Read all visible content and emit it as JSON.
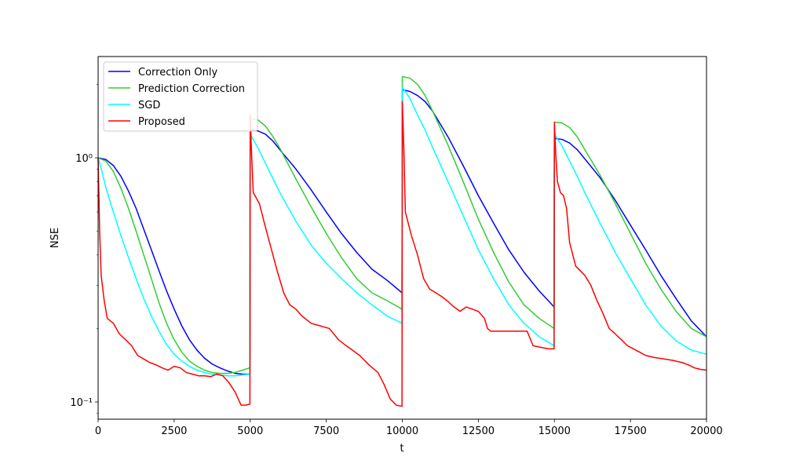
{
  "chart_data": {
    "type": "line",
    "title": "",
    "xlabel": "t",
    "ylabel": "NSE",
    "xlim": [
      0,
      20000
    ],
    "ylim": [
      0.085,
      2.6
    ],
    "yscale": "log",
    "grid": false,
    "legend_position": "top-left",
    "x_ticks": [
      0,
      2500,
      5000,
      7500,
      10000,
      12500,
      15000,
      17500,
      20000
    ],
    "x_tick_labels": [
      "0",
      "2500",
      "5000",
      "7500",
      "10000",
      "12500",
      "15000",
      "17500",
      "20000"
    ],
    "y_ticks": [
      0.1,
      1
    ],
    "y_tick_labels": [
      "10⁻¹",
      "10⁰"
    ],
    "series": [
      {
        "name": "Correction Only",
        "color": "#0000ff",
        "points": [
          [
            0,
            1.0
          ],
          [
            250,
            0.985
          ],
          [
            500,
            0.93
          ],
          [
            750,
            0.84
          ],
          [
            1000,
            0.73
          ],
          [
            1250,
            0.62
          ],
          [
            1500,
            0.51
          ],
          [
            1750,
            0.42
          ],
          [
            2000,
            0.345
          ],
          [
            2250,
            0.285
          ],
          [
            2500,
            0.24
          ],
          [
            2750,
            0.205
          ],
          [
            3000,
            0.18
          ],
          [
            3250,
            0.163
          ],
          [
            3500,
            0.151
          ],
          [
            3750,
            0.143
          ],
          [
            4000,
            0.138
          ],
          [
            4250,
            0.134
          ],
          [
            4500,
            0.131
          ],
          [
            4750,
            0.13
          ],
          [
            4990,
            0.13
          ],
          [
            5000,
            1.3
          ],
          [
            5250,
            1.29
          ],
          [
            5500,
            1.25
          ],
          [
            5750,
            1.17
          ],
          [
            6000,
            1.07
          ],
          [
            6500,
            0.9
          ],
          [
            7000,
            0.74
          ],
          [
            7500,
            0.6
          ],
          [
            8000,
            0.49
          ],
          [
            8500,
            0.41
          ],
          [
            9000,
            0.35
          ],
          [
            9500,
            0.315
          ],
          [
            9990,
            0.28
          ],
          [
            10000,
            1.9
          ],
          [
            10250,
            1.87
          ],
          [
            10500,
            1.8
          ],
          [
            10750,
            1.7
          ],
          [
            11000,
            1.55
          ],
          [
            11500,
            1.22
          ],
          [
            12000,
            0.93
          ],
          [
            12500,
            0.7
          ],
          [
            13000,
            0.54
          ],
          [
            13500,
            0.42
          ],
          [
            14000,
            0.34
          ],
          [
            14500,
            0.285
          ],
          [
            14990,
            0.245
          ],
          [
            15000,
            1.2
          ],
          [
            15250,
            1.19
          ],
          [
            15500,
            1.15
          ],
          [
            15750,
            1.08
          ],
          [
            16000,
            0.99
          ],
          [
            16500,
            0.83
          ],
          [
            17000,
            0.67
          ],
          [
            17500,
            0.53
          ],
          [
            18000,
            0.42
          ],
          [
            18500,
            0.33
          ],
          [
            19000,
            0.265
          ],
          [
            19500,
            0.215
          ],
          [
            20000,
            0.185
          ]
        ]
      },
      {
        "name": "Prediction Correction",
        "color": "#32cd32",
        "points": [
          [
            0,
            1.0
          ],
          [
            250,
            0.97
          ],
          [
            500,
            0.88
          ],
          [
            750,
            0.75
          ],
          [
            1000,
            0.62
          ],
          [
            1250,
            0.5
          ],
          [
            1500,
            0.4
          ],
          [
            1750,
            0.32
          ],
          [
            2000,
            0.255
          ],
          [
            2250,
            0.21
          ],
          [
            2500,
            0.18
          ],
          [
            2750,
            0.16
          ],
          [
            3000,
            0.147
          ],
          [
            3250,
            0.14
          ],
          [
            3500,
            0.135
          ],
          [
            3750,
            0.132
          ],
          [
            4000,
            0.131
          ],
          [
            4250,
            0.131
          ],
          [
            4500,
            0.132
          ],
          [
            4750,
            0.135
          ],
          [
            4990,
            0.138
          ],
          [
            5000,
            1.45
          ],
          [
            5250,
            1.43
          ],
          [
            5500,
            1.35
          ],
          [
            5750,
            1.22
          ],
          [
            6000,
            1.08
          ],
          [
            6500,
            0.82
          ],
          [
            7000,
            0.63
          ],
          [
            7500,
            0.49
          ],
          [
            8000,
            0.39
          ],
          [
            8500,
            0.32
          ],
          [
            9000,
            0.28
          ],
          [
            9500,
            0.26
          ],
          [
            9990,
            0.24
          ],
          [
            10000,
            2.15
          ],
          [
            10250,
            2.12
          ],
          [
            10500,
            2.0
          ],
          [
            10750,
            1.8
          ],
          [
            11000,
            1.55
          ],
          [
            11500,
            1.13
          ],
          [
            12000,
            0.8
          ],
          [
            12500,
            0.56
          ],
          [
            13000,
            0.41
          ],
          [
            13500,
            0.31
          ],
          [
            14000,
            0.25
          ],
          [
            14500,
            0.22
          ],
          [
            14990,
            0.2
          ],
          [
            15000,
            1.4
          ],
          [
            15250,
            1.39
          ],
          [
            15500,
            1.33
          ],
          [
            15750,
            1.22
          ],
          [
            16000,
            1.08
          ],
          [
            16500,
            0.85
          ],
          [
            17000,
            0.65
          ],
          [
            17500,
            0.49
          ],
          [
            18000,
            0.37
          ],
          [
            18500,
            0.29
          ],
          [
            19000,
            0.235
          ],
          [
            19500,
            0.2
          ],
          [
            20000,
            0.185
          ]
        ]
      },
      {
        "name": "SGD",
        "color": "#00ffff",
        "points": [
          [
            0,
            1.0
          ],
          [
            125,
            0.88
          ],
          [
            250,
            0.76
          ],
          [
            500,
            0.6
          ],
          [
            750,
            0.48
          ],
          [
            1000,
            0.39
          ],
          [
            1250,
            0.32
          ],
          [
            1500,
            0.265
          ],
          [
            1750,
            0.225
          ],
          [
            2000,
            0.195
          ],
          [
            2250,
            0.172
          ],
          [
            2500,
            0.157
          ],
          [
            2750,
            0.147
          ],
          [
            3000,
            0.14
          ],
          [
            3250,
            0.135
          ],
          [
            3500,
            0.132
          ],
          [
            3750,
            0.13
          ],
          [
            4000,
            0.129
          ],
          [
            4250,
            0.128
          ],
          [
            4500,
            0.128
          ],
          [
            4750,
            0.129
          ],
          [
            4990,
            0.13
          ],
          [
            5000,
            1.25
          ],
          [
            5250,
            1.1
          ],
          [
            5500,
            0.95
          ],
          [
            5750,
            0.82
          ],
          [
            6000,
            0.71
          ],
          [
            6500,
            0.55
          ],
          [
            7000,
            0.44
          ],
          [
            7500,
            0.37
          ],
          [
            8000,
            0.32
          ],
          [
            8500,
            0.28
          ],
          [
            9000,
            0.25
          ],
          [
            9500,
            0.225
          ],
          [
            9990,
            0.21
          ],
          [
            10000,
            1.95
          ],
          [
            10250,
            1.75
          ],
          [
            10500,
            1.5
          ],
          [
            10750,
            1.3
          ],
          [
            11000,
            1.1
          ],
          [
            11500,
            0.8
          ],
          [
            12000,
            0.58
          ],
          [
            12500,
            0.42
          ],
          [
            13000,
            0.32
          ],
          [
            13500,
            0.25
          ],
          [
            14000,
            0.21
          ],
          [
            14500,
            0.185
          ],
          [
            14990,
            0.17
          ],
          [
            15000,
            1.25
          ],
          [
            15250,
            1.12
          ],
          [
            15500,
            0.97
          ],
          [
            15750,
            0.84
          ],
          [
            16000,
            0.72
          ],
          [
            16500,
            0.54
          ],
          [
            17000,
            0.41
          ],
          [
            17500,
            0.32
          ],
          [
            18000,
            0.25
          ],
          [
            18500,
            0.205
          ],
          [
            19000,
            0.178
          ],
          [
            19500,
            0.163
          ],
          [
            20000,
            0.157
          ]
        ]
      },
      {
        "name": "Proposed",
        "color": "#ff0000",
        "points": [
          [
            0,
            1.0
          ],
          [
            50,
            0.5
          ],
          [
            100,
            0.33
          ],
          [
            200,
            0.26
          ],
          [
            300,
            0.22
          ],
          [
            500,
            0.21
          ],
          [
            700,
            0.19
          ],
          [
            900,
            0.18
          ],
          [
            1100,
            0.17
          ],
          [
            1300,
            0.155
          ],
          [
            1500,
            0.15
          ],
          [
            1700,
            0.145
          ],
          [
            1900,
            0.142
          ],
          [
            2100,
            0.138
          ],
          [
            2300,
            0.135
          ],
          [
            2500,
            0.14
          ],
          [
            2700,
            0.138
          ],
          [
            2900,
            0.132
          ],
          [
            3100,
            0.13
          ],
          [
            3300,
            0.128
          ],
          [
            3500,
            0.128
          ],
          [
            3700,
            0.127
          ],
          [
            3900,
            0.13
          ],
          [
            4100,
            0.128
          ],
          [
            4300,
            0.12
          ],
          [
            4500,
            0.11
          ],
          [
            4700,
            0.097
          ],
          [
            4850,
            0.097
          ],
          [
            4990,
            0.098
          ],
          [
            5000,
            1.5
          ],
          [
            5050,
            1.0
          ],
          [
            5100,
            0.72
          ],
          [
            5300,
            0.65
          ],
          [
            5500,
            0.52
          ],
          [
            5700,
            0.42
          ],
          [
            5900,
            0.34
          ],
          [
            6100,
            0.28
          ],
          [
            6300,
            0.25
          ],
          [
            6500,
            0.24
          ],
          [
            6700,
            0.225
          ],
          [
            7000,
            0.21
          ],
          [
            7300,
            0.205
          ],
          [
            7600,
            0.2
          ],
          [
            7900,
            0.18
          ],
          [
            8100,
            0.172
          ],
          [
            8300,
            0.165
          ],
          [
            8600,
            0.155
          ],
          [
            8900,
            0.142
          ],
          [
            9200,
            0.132
          ],
          [
            9400,
            0.118
          ],
          [
            9600,
            0.103
          ],
          [
            9800,
            0.097
          ],
          [
            9990,
            0.096
          ],
          [
            10000,
            1.7
          ],
          [
            10050,
            1.1
          ],
          [
            10100,
            0.6
          ],
          [
            10300,
            0.48
          ],
          [
            10500,
            0.4
          ],
          [
            10700,
            0.32
          ],
          [
            10900,
            0.29
          ],
          [
            11100,
            0.28
          ],
          [
            11300,
            0.27
          ],
          [
            11500,
            0.258
          ],
          [
            11700,
            0.245
          ],
          [
            11900,
            0.235
          ],
          [
            12100,
            0.245
          ],
          [
            12300,
            0.24
          ],
          [
            12500,
            0.235
          ],
          [
            12700,
            0.22
          ],
          [
            12800,
            0.2
          ],
          [
            12900,
            0.195
          ],
          [
            13300,
            0.195
          ],
          [
            13800,
            0.195
          ],
          [
            14100,
            0.195
          ],
          [
            14300,
            0.17
          ],
          [
            14500,
            0.168
          ],
          [
            14800,
            0.165
          ],
          [
            14990,
            0.165
          ],
          [
            15000,
            1.4
          ],
          [
            15050,
            1.0
          ],
          [
            15100,
            0.8
          ],
          [
            15200,
            0.72
          ],
          [
            15300,
            0.7
          ],
          [
            15400,
            0.62
          ],
          [
            15500,
            0.45
          ],
          [
            15700,
            0.36
          ],
          [
            16000,
            0.33
          ],
          [
            16200,
            0.3
          ],
          [
            16400,
            0.26
          ],
          [
            16600,
            0.23
          ],
          [
            16800,
            0.2
          ],
          [
            17000,
            0.19
          ],
          [
            17200,
            0.18
          ],
          [
            17400,
            0.17
          ],
          [
            17600,
            0.165
          ],
          [
            17800,
            0.16
          ],
          [
            18000,
            0.155
          ],
          [
            18300,
            0.152
          ],
          [
            18600,
            0.15
          ],
          [
            18900,
            0.148
          ],
          [
            19200,
            0.145
          ],
          [
            19400,
            0.142
          ],
          [
            19600,
            0.138
          ],
          [
            19800,
            0.136
          ],
          [
            20000,
            0.135
          ]
        ]
      }
    ]
  }
}
